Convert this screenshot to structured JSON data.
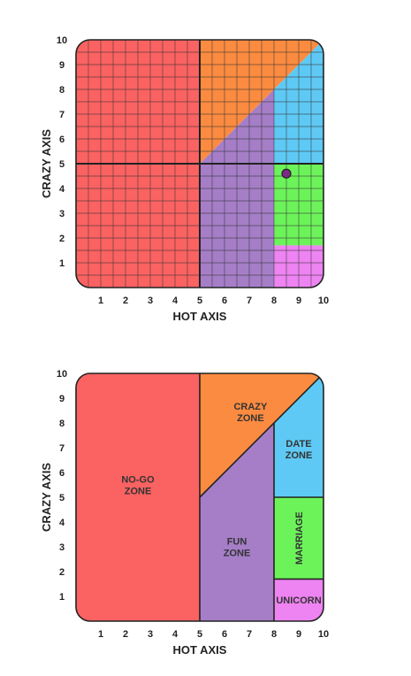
{
  "colors": {
    "nogo": "#fb6262",
    "crazy": "#fb8b40",
    "fun": "#a57ec7",
    "date": "#5ec9f4",
    "marriage": "#6cf35a",
    "unicorn": "#ee83f2",
    "grid_line": "#333333",
    "point": "#7a2a85"
  },
  "chart_data": [
    {
      "type": "scatter",
      "xlabel": "HOT AXIS",
      "ylabel": "CRAZY AXIS",
      "xlim": [
        0,
        10
      ],
      "ylim": [
        0,
        10
      ],
      "x_ticks": [
        "1",
        "2",
        "3",
        "4",
        "5",
        "6",
        "7",
        "8",
        "9",
        "10"
      ],
      "y_ticks": [
        "1",
        "2",
        "3",
        "4",
        "5",
        "6",
        "7",
        "8",
        "9",
        "10"
      ],
      "grid": true,
      "point": {
        "x": 8.5,
        "y": 4.6
      }
    },
    {
      "type": "area",
      "xlabel": "HOT AXIS",
      "ylabel": "CRAZY AXIS",
      "xlim": [
        0,
        10
      ],
      "ylim": [
        0,
        10
      ],
      "x_ticks": [
        "1",
        "2",
        "3",
        "4",
        "5",
        "6",
        "7",
        "8",
        "9",
        "10"
      ],
      "y_ticks": [
        "1",
        "2",
        "3",
        "4",
        "5",
        "6",
        "7",
        "8",
        "9",
        "10"
      ],
      "grid": false,
      "zones": [
        {
          "label": "NO-GO\nZONE",
          "color_key": "nogo"
        },
        {
          "label": "CRAZY\nZONE",
          "color_key": "crazy"
        },
        {
          "label": "FUN\nZONE",
          "color_key": "fun"
        },
        {
          "label": "DATE\nZONE",
          "color_key": "date"
        },
        {
          "label": "MARRIAGE",
          "color_key": "marriage"
        },
        {
          "label": "UNICORN",
          "color_key": "unicorn"
        }
      ]
    }
  ]
}
